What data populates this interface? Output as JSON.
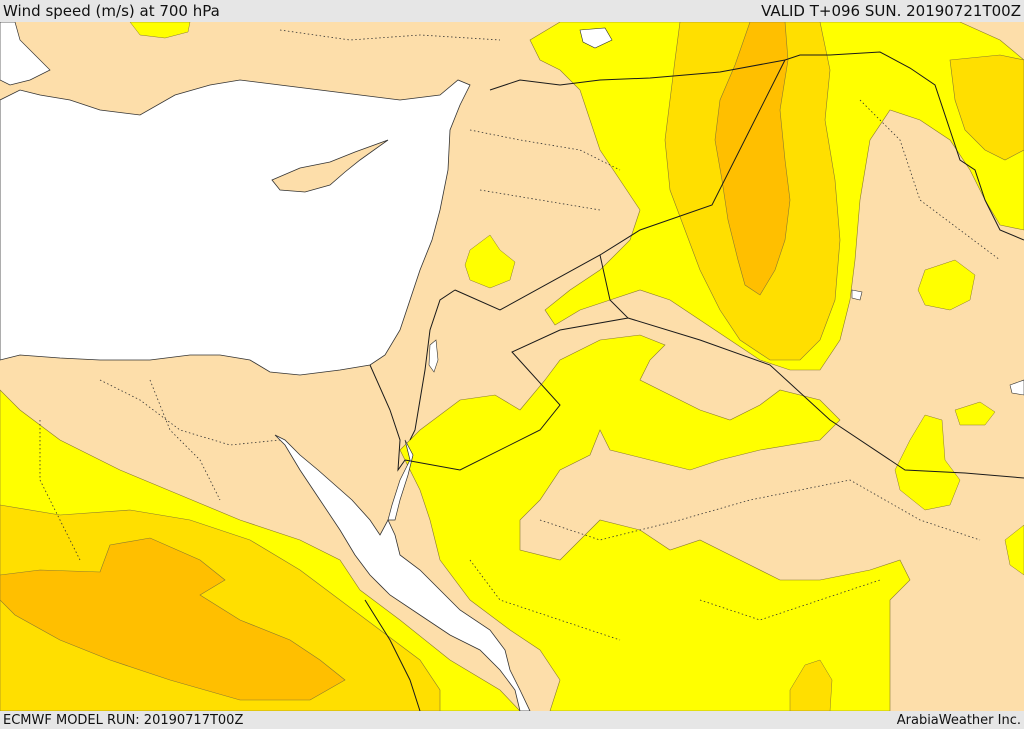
{
  "header": {
    "title": "Wind speed (m/s) at 700 hPa",
    "valid": "VALID T+096 SUN. 20190721T00Z"
  },
  "footer": {
    "model_run": "ECMWF MODEL RUN: 20190717T00Z",
    "credit": "ArabiaWeather Inc."
  },
  "colors": {
    "land_base": "#fddeaa",
    "water": "#ffffff",
    "level_1": "#ffff00",
    "level_2": "#ffdf00",
    "level_3": "#ffbf00",
    "border": "#1a1a1a"
  }
}
